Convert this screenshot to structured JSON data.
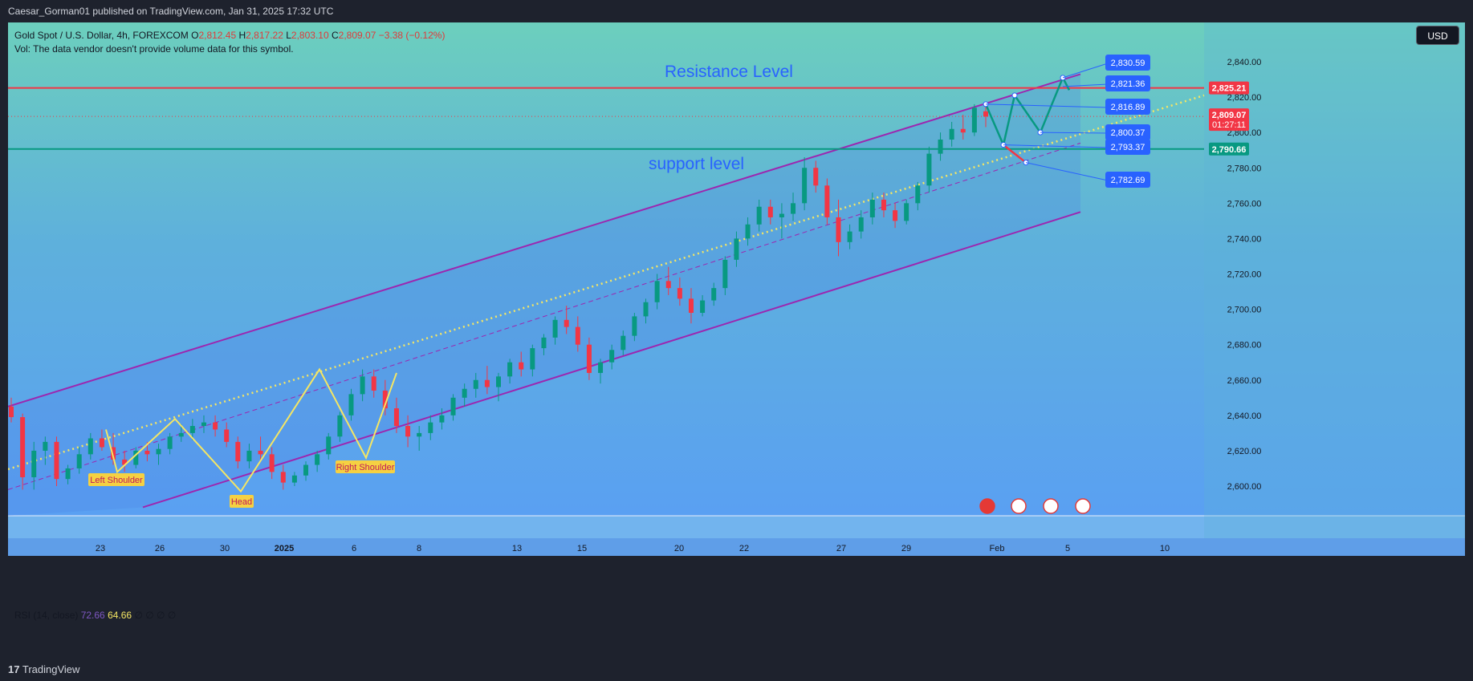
{
  "header": {
    "published": "Caesar_Gorman01 published on TradingView.com, Jan 31, 2025 17:32 UTC"
  },
  "legend": {
    "symbol": "Gold Spot / U.S. Dollar, 4h, FOREXCOM",
    "o_label": "O",
    "o_value": "2,812.45",
    "h_label": "H",
    "h_value": "2,817.22",
    "l_label": "L",
    "l_value": "2,803.10",
    "c_label": "C",
    "c_value": "2,809.07",
    "change": "−3.38 (−0.12%)",
    "vol": "Vol: The data vendor doesn't provide volume data for this symbol."
  },
  "currency_button": "USD",
  "rsi": {
    "label": "RSI (14, close)",
    "value1": "72.66",
    "value2": "64.66",
    "extra": "∅ ∅ ∅ ∅"
  },
  "footer": {
    "brand": "TradingView"
  },
  "colors": {
    "resistance": "#f23645",
    "support": "#089981",
    "channel": "#9c27b0",
    "midline": "#f5e663",
    "label_blue": "#2962ff",
    "bull": "#089981",
    "bear": "#f23645"
  },
  "chart_data": {
    "type": "candlestick",
    "timeframe": "4h",
    "ylim": [
      2590,
      2845
    ],
    "y_ticks": [
      "2,840.00",
      "2,820.00",
      "2,800.00",
      "2,780.00",
      "2,760.00",
      "2,740.00",
      "2,720.00",
      "2,700.00",
      "2,680.00",
      "2,660.00",
      "2,640.00",
      "2,620.00",
      "2,600.00"
    ],
    "y_tick_values": [
      2840,
      2820,
      2800,
      2780,
      2760,
      2740,
      2720,
      2700,
      2680,
      2660,
      2640,
      2620,
      2600
    ],
    "x_ticks": [
      "23",
      "26",
      "30",
      "2025",
      "6",
      "8",
      "13",
      "15",
      "20",
      "22",
      "27",
      "29",
      "Feb",
      "5",
      "10"
    ],
    "annotations": {
      "resistance_label": "Resistance Level",
      "support_label": "support level",
      "left_shoulder": "Left Shoulder",
      "head": "Head",
      "right_shoulder": "Right Shoulder"
    },
    "horizontal_levels": [
      {
        "name": "resistance",
        "value": 2825.21,
        "label": "2,825.21"
      },
      {
        "name": "support",
        "value": 2790.66,
        "label": "2,790.66"
      }
    ],
    "current_price": {
      "value": 2809.07,
      "label": "2,809.07",
      "countdown": "01:27:11"
    },
    "price_labels": [
      {
        "label": "2,830.59",
        "value": 2830.59
      },
      {
        "label": "2,821.36",
        "value": 2821.36
      },
      {
        "label": "2,816.89",
        "value": 2816.89
      },
      {
        "label": "2,800.37",
        "value": 2800.37
      },
      {
        "label": "2,793.37",
        "value": 2793.37
      },
      {
        "label": "2,782.69",
        "value": 2782.69
      }
    ],
    "candles": [
      [
        2645,
        2650,
        2636,
        2639
      ],
      [
        2639,
        2641,
        2598,
        2605
      ],
      [
        2605,
        2625,
        2598,
        2620
      ],
      [
        2620,
        2628,
        2612,
        2625
      ],
      [
        2625,
        2628,
        2600,
        2604
      ],
      [
        2604,
        2612,
        2601,
        2610
      ],
      [
        2610,
        2622,
        2607,
        2618
      ],
      [
        2618,
        2630,
        2615,
        2627
      ],
      [
        2627,
        2632,
        2620,
        2622
      ],
      [
        2622,
        2630,
        2612,
        2615
      ],
      [
        2615,
        2620,
        2608,
        2612
      ],
      [
        2612,
        2622,
        2610,
        2620
      ],
      [
        2620,
        2625,
        2614,
        2618
      ],
      [
        2618,
        2624,
        2612,
        2621
      ],
      [
        2621,
        2630,
        2618,
        2628
      ],
      [
        2628,
        2635,
        2625,
        2630
      ],
      [
        2630,
        2638,
        2626,
        2634
      ],
      [
        2634,
        2640,
        2630,
        2636
      ],
      [
        2636,
        2640,
        2628,
        2632
      ],
      [
        2632,
        2636,
        2622,
        2625
      ],
      [
        2625,
        2628,
        2610,
        2614
      ],
      [
        2614,
        2624,
        2610,
        2620
      ],
      [
        2620,
        2628,
        2615,
        2618
      ],
      [
        2618,
        2622,
        2604,
        2608
      ],
      [
        2608,
        2612,
        2598,
        2602
      ],
      [
        2602,
        2608,
        2600,
        2606
      ],
      [
        2606,
        2614,
        2603,
        2612
      ],
      [
        2612,
        2620,
        2608,
        2618
      ],
      [
        2618,
        2630,
        2615,
        2628
      ],
      [
        2628,
        2642,
        2625,
        2640
      ],
      [
        2640,
        2655,
        2637,
        2652
      ],
      [
        2652,
        2666,
        2648,
        2662
      ],
      [
        2662,
        2666,
        2650,
        2654
      ],
      [
        2654,
        2660,
        2640,
        2644
      ],
      [
        2644,
        2650,
        2630,
        2634
      ],
      [
        2634,
        2640,
        2622,
        2628
      ],
      [
        2628,
        2634,
        2620,
        2630
      ],
      [
        2630,
        2640,
        2626,
        2636
      ],
      [
        2636,
        2644,
        2632,
        2640
      ],
      [
        2640,
        2652,
        2637,
        2650
      ],
      [
        2650,
        2658,
        2645,
        2655
      ],
      [
        2655,
        2664,
        2650,
        2660
      ],
      [
        2660,
        2668,
        2652,
        2656
      ],
      [
        2656,
        2664,
        2648,
        2662
      ],
      [
        2662,
        2672,
        2658,
        2670
      ],
      [
        2670,
        2676,
        2662,
        2666
      ],
      [
        2666,
        2680,
        2662,
        2678
      ],
      [
        2678,
        2686,
        2674,
        2684
      ],
      [
        2684,
        2696,
        2680,
        2694
      ],
      [
        2694,
        2702,
        2686,
        2690
      ],
      [
        2690,
        2696,
        2676,
        2680
      ],
      [
        2680,
        2684,
        2660,
        2664
      ],
      [
        2664,
        2672,
        2658,
        2670
      ],
      [
        2670,
        2680,
        2666,
        2677
      ],
      [
        2677,
        2688,
        2674,
        2685
      ],
      [
        2685,
        2698,
        2682,
        2696
      ],
      [
        2696,
        2706,
        2692,
        2704
      ],
      [
        2704,
        2720,
        2700,
        2716
      ],
      [
        2716,
        2724,
        2708,
        2712
      ],
      [
        2712,
        2718,
        2702,
        2706
      ],
      [
        2706,
        2712,
        2692,
        2698
      ],
      [
        2698,
        2708,
        2696,
        2705
      ],
      [
        2705,
        2715,
        2702,
        2712
      ],
      [
        2712,
        2730,
        2708,
        2728
      ],
      [
        2728,
        2744,
        2724,
        2740
      ],
      [
        2740,
        2752,
        2736,
        2748
      ],
      [
        2748,
        2762,
        2744,
        2758
      ],
      [
        2758,
        2762,
        2748,
        2752
      ],
      [
        2752,
        2760,
        2740,
        2754
      ],
      [
        2754,
        2766,
        2750,
        2760
      ],
      [
        2760,
        2786,
        2756,
        2780
      ],
      [
        2780,
        2784,
        2766,
        2770
      ],
      [
        2770,
        2774,
        2748,
        2752
      ],
      [
        2752,
        2762,
        2730,
        2738
      ],
      [
        2738,
        2748,
        2734,
        2744
      ],
      [
        2744,
        2756,
        2740,
        2752
      ],
      [
        2752,
        2766,
        2748,
        2762
      ],
      [
        2762,
        2766,
        2752,
        2756
      ],
      [
        2756,
        2760,
        2746,
        2750
      ],
      [
        2750,
        2762,
        2748,
        2760
      ],
      [
        2760,
        2772,
        2756,
        2770
      ],
      [
        2770,
        2792,
        2766,
        2788
      ],
      [
        2788,
        2800,
        2784,
        2796
      ],
      [
        2796,
        2806,
        2792,
        2802
      ],
      [
        2802,
        2810,
        2796,
        2800
      ],
      [
        2800,
        2816,
        2798,
        2814
      ],
      [
        2812,
        2817,
        2803,
        2809
      ]
    ],
    "channel": {
      "upper": [
        [
          0,
          2645
        ],
        [
          1336,
          2833
        ]
      ],
      "lower": [
        [
          168,
          2588
        ],
        [
          1336,
          2755
        ]
      ]
    },
    "midline": [
      [
        0,
        2605
      ],
      [
        1490,
        2821
      ]
    ]
  }
}
